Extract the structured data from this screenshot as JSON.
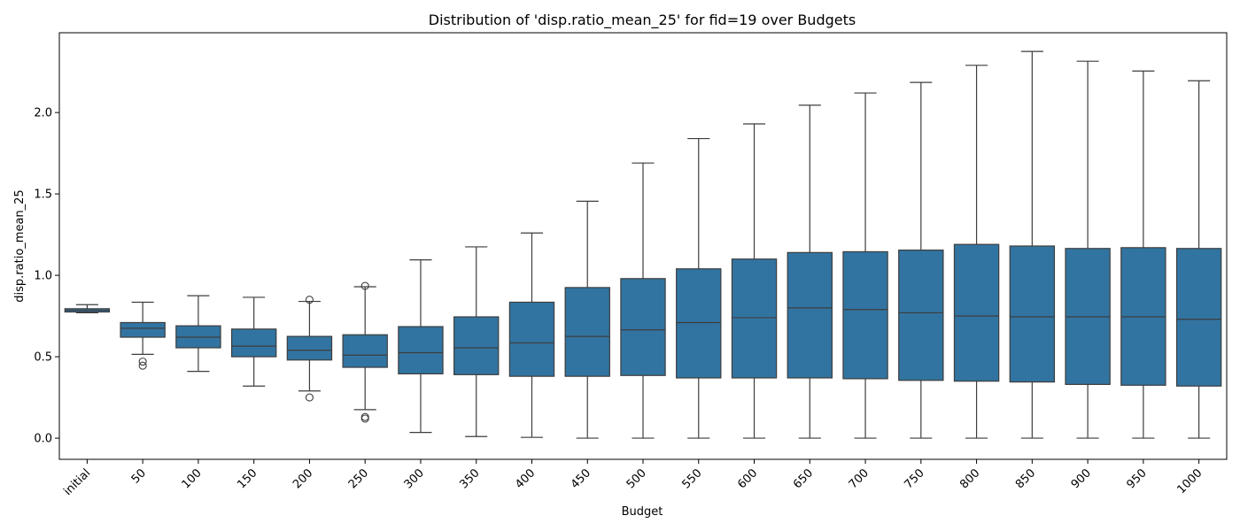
{
  "chart_data": {
    "type": "boxplot",
    "title": "Distribution of 'disp.ratio_mean_25' for fid=19 over Budgets",
    "xlabel": "Budget",
    "ylabel": "disp.ratio_mean_25",
    "ylim": [
      -0.13,
      2.49
    ],
    "yticks": [
      0.0,
      0.5,
      1.0,
      1.5,
      2.0
    ],
    "ytick_labels": [
      "0.0",
      "0.5",
      "1.0",
      "1.5",
      "2.0"
    ],
    "grid": false,
    "legend": "none",
    "box_color": "#3274a1",
    "line_color": "#3d3d3d",
    "categories": [
      "initial",
      "50",
      "100",
      "150",
      "200",
      "250",
      "300",
      "350",
      "400",
      "450",
      "500",
      "550",
      "600",
      "650",
      "700",
      "750",
      "800",
      "850",
      "900",
      "950",
      "1000"
    ],
    "boxes": [
      {
        "whislo": 0.77,
        "q1": 0.775,
        "med": 0.785,
        "q3": 0.795,
        "whishi": 0.82,
        "fliers": []
      },
      {
        "whislo": 0.515,
        "q1": 0.62,
        "med": 0.675,
        "q3": 0.71,
        "whishi": 0.835,
        "fliers": [
          0.47,
          0.445
        ]
      },
      {
        "whislo": 0.41,
        "q1": 0.555,
        "med": 0.62,
        "q3": 0.69,
        "whishi": 0.875,
        "fliers": []
      },
      {
        "whislo": 0.32,
        "q1": 0.5,
        "med": 0.565,
        "q3": 0.67,
        "whishi": 0.865,
        "fliers": []
      },
      {
        "whislo": 0.29,
        "q1": 0.48,
        "med": 0.54,
        "q3": 0.625,
        "whishi": 0.84,
        "fliers": [
          0.85,
          0.25
        ]
      },
      {
        "whislo": 0.175,
        "q1": 0.435,
        "med": 0.51,
        "q3": 0.635,
        "whishi": 0.93,
        "fliers": [
          0.935,
          0.13,
          0.12
        ]
      },
      {
        "whislo": 0.035,
        "q1": 0.395,
        "med": 0.525,
        "q3": 0.685,
        "whishi": 1.095,
        "fliers": []
      },
      {
        "whislo": 0.01,
        "q1": 0.39,
        "med": 0.555,
        "q3": 0.745,
        "whishi": 1.175,
        "fliers": []
      },
      {
        "whislo": 0.005,
        "q1": 0.38,
        "med": 0.585,
        "q3": 0.835,
        "whishi": 1.26,
        "fliers": []
      },
      {
        "whislo": 0.0,
        "q1": 0.38,
        "med": 0.625,
        "q3": 0.925,
        "whishi": 1.455,
        "fliers": []
      },
      {
        "whislo": 0.0,
        "q1": 0.385,
        "med": 0.665,
        "q3": 0.98,
        "whishi": 1.69,
        "fliers": []
      },
      {
        "whislo": 0.0,
        "q1": 0.37,
        "med": 0.71,
        "q3": 1.04,
        "whishi": 1.84,
        "fliers": []
      },
      {
        "whislo": 0.0,
        "q1": 0.37,
        "med": 0.74,
        "q3": 1.1,
        "whishi": 1.93,
        "fliers": []
      },
      {
        "whislo": 0.0,
        "q1": 0.37,
        "med": 0.8,
        "q3": 1.14,
        "whishi": 2.045,
        "fliers": []
      },
      {
        "whislo": 0.0,
        "q1": 0.365,
        "med": 0.79,
        "q3": 1.145,
        "whishi": 2.12,
        "fliers": []
      },
      {
        "whislo": 0.0,
        "q1": 0.355,
        "med": 0.77,
        "q3": 1.155,
        "whishi": 2.185,
        "fliers": []
      },
      {
        "whislo": 0.0,
        "q1": 0.35,
        "med": 0.75,
        "q3": 1.19,
        "whishi": 2.29,
        "fliers": []
      },
      {
        "whislo": 0.0,
        "q1": 0.345,
        "med": 0.745,
        "q3": 1.18,
        "whishi": 2.375,
        "fliers": []
      },
      {
        "whislo": 0.0,
        "q1": 0.33,
        "med": 0.745,
        "q3": 1.165,
        "whishi": 2.315,
        "fliers": []
      },
      {
        "whislo": 0.0,
        "q1": 0.325,
        "med": 0.745,
        "q3": 1.17,
        "whishi": 2.255,
        "fliers": []
      },
      {
        "whislo": 0.0,
        "q1": 0.32,
        "med": 0.73,
        "q3": 1.165,
        "whishi": 2.195,
        "fliers": []
      }
    ]
  }
}
